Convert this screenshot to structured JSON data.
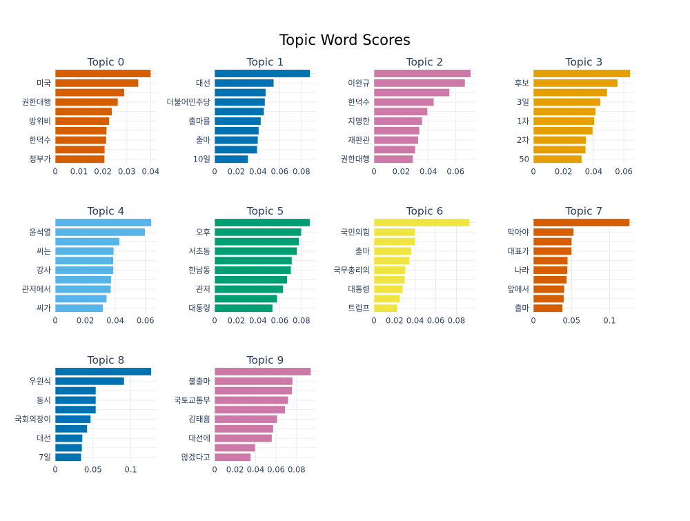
{
  "title": "Topic Word Scores",
  "colors": {
    "grid": "#e9ecf1",
    "axis_text": "#2a3f5f",
    "title_text": "#000000"
  },
  "chart_data": [
    {
      "type": "bar",
      "orientation": "horizontal",
      "title": "Topic 0",
      "color": "#D55E00",
      "categories_top_to_bottom": [
        "",
        "미국",
        "",
        "권한대행",
        "",
        "방위비",
        "",
        "한덕수",
        "",
        "정부가"
      ],
      "values_top_to_bottom": [
        0.0401,
        0.0349,
        0.029,
        0.0263,
        0.0238,
        0.0227,
        0.0216,
        0.0214,
        0.0208,
        0.0207
      ],
      "xlim": [
        0,
        0.0425
      ],
      "xticks": [
        {
          "value": 0,
          "label": "0"
        },
        {
          "value": 0.01,
          "label": "0.01"
        },
        {
          "value": 0.02,
          "label": "0.02"
        },
        {
          "value": 0.03,
          "label": "0.03"
        },
        {
          "value": 0.04,
          "label": "0.04"
        }
      ],
      "grid": true
    },
    {
      "type": "bar",
      "orientation": "horizontal",
      "title": "Topic 1",
      "color": "#0072B2",
      "categories_top_to_bottom": [
        "",
        "대선",
        "",
        "더불어민주당",
        "",
        "출마를",
        "",
        "출마",
        "",
        "10일"
      ],
      "values_top_to_bottom": [
        0.0881,
        0.0546,
        0.0472,
        0.0465,
        0.0456,
        0.0427,
        0.0408,
        0.04,
        0.0393,
        0.0309
      ],
      "xlim": [
        0,
        0.0935
      ],
      "xticks": [
        {
          "value": 0,
          "label": "0"
        },
        {
          "value": 0.02,
          "label": "0.02"
        },
        {
          "value": 0.04,
          "label": "0.04"
        },
        {
          "value": 0.06,
          "label": "0.06"
        },
        {
          "value": 0.08,
          "label": "0.08"
        }
      ],
      "grid": true
    },
    {
      "type": "bar",
      "orientation": "horizontal",
      "title": "Topic 2",
      "color": "#CC79A7",
      "categories_top_to_bottom": [
        "",
        "이완규",
        "",
        "한덕수",
        "",
        "지명한",
        "",
        "재판관",
        "",
        "권한대행"
      ],
      "values_top_to_bottom": [
        0.0712,
        0.067,
        0.0556,
        0.0441,
        0.0394,
        0.0355,
        0.0335,
        0.0326,
        0.0304,
        0.0287
      ],
      "xlim": [
        0,
        0.0746
      ],
      "xticks": [
        {
          "value": 0,
          "label": "0"
        },
        {
          "value": 0.02,
          "label": "0.02"
        },
        {
          "value": 0.04,
          "label": "0.04"
        },
        {
          "value": 0.06,
          "label": "0.06"
        }
      ],
      "grid": true
    },
    {
      "type": "bar",
      "orientation": "horizontal",
      "title": "Topic 3",
      "color": "#E69F00",
      "categories_top_to_bottom": [
        "",
        "후보",
        "",
        "3일",
        "",
        "1차",
        "",
        "2차",
        "",
        "50"
      ],
      "values_top_to_bottom": [
        0.0643,
        0.0559,
        0.049,
        0.0446,
        0.0413,
        0.0405,
        0.0394,
        0.035,
        0.0347,
        0.0321
      ],
      "xlim": [
        0,
        0.0673
      ],
      "xticks": [
        {
          "value": 0,
          "label": "0"
        },
        {
          "value": 0.02,
          "label": "0.02"
        },
        {
          "value": 0.04,
          "label": "0.04"
        },
        {
          "value": 0.06,
          "label": "0.06"
        }
      ],
      "grid": true
    },
    {
      "type": "bar",
      "orientation": "horizontal",
      "title": "Topic 4",
      "color": "#56B4E9",
      "categories_top_to_bottom": [
        "",
        "윤석열",
        "",
        "씨는",
        "",
        "강사",
        "",
        "관저에서",
        "",
        "씨가"
      ],
      "values_top_to_bottom": [
        0.064,
        0.0598,
        0.0428,
        0.039,
        0.0388,
        0.0388,
        0.0373,
        0.0371,
        0.0343,
        0.0318
      ],
      "xlim": [
        0,
        0.0675
      ],
      "xticks": [
        {
          "value": 0,
          "label": "0"
        },
        {
          "value": 0.02,
          "label": "0.02"
        },
        {
          "value": 0.04,
          "label": "0.04"
        },
        {
          "value": 0.06,
          "label": "0.06"
        }
      ],
      "grid": true
    },
    {
      "type": "bar",
      "orientation": "horizontal",
      "title": "Topic 5",
      "color": "#009E73",
      "categories_top_to_bottom": [
        "",
        "오후",
        "",
        "서초동",
        "",
        "한남동",
        "",
        "관저",
        "",
        "대통령"
      ],
      "values_top_to_bottom": [
        0.0879,
        0.08,
        0.0778,
        0.076,
        0.0713,
        0.0705,
        0.067,
        0.0633,
        0.0578,
        0.0535
      ],
      "xlim": [
        0,
        0.0935
      ],
      "xticks": [
        {
          "value": 0,
          "label": "0"
        },
        {
          "value": 0.02,
          "label": "0.02"
        },
        {
          "value": 0.04,
          "label": "0.04"
        },
        {
          "value": 0.06,
          "label": "0.06"
        },
        {
          "value": 0.08,
          "label": "0.08"
        }
      ],
      "grid": true
    },
    {
      "type": "bar",
      "orientation": "horizontal",
      "title": "Topic 6",
      "color": "#F0E442",
      "categories_top_to_bottom": [
        "",
        "국민의힘",
        "",
        "출마",
        "",
        "국무총리의",
        "",
        "대통령",
        "",
        "트럼프"
      ],
      "values_top_to_bottom": [
        0.093,
        0.04,
        0.04,
        0.0365,
        0.0345,
        0.0305,
        0.03,
        0.028,
        0.025,
        0.0225
      ],
      "xlim": [
        0,
        0.0985
      ],
      "xticks": [
        {
          "value": 0,
          "label": "0"
        },
        {
          "value": 0.02,
          "label": "0.02"
        },
        {
          "value": 0.04,
          "label": "0.04"
        },
        {
          "value": 0.06,
          "label": "0.06"
        },
        {
          "value": 0.08,
          "label": "0.08"
        }
      ],
      "grid": true
    },
    {
      "type": "bar",
      "orientation": "horizontal",
      "title": "Topic 7",
      "color": "#D55E00",
      "categories_top_to_bottom": [
        "",
        "막아야",
        "",
        "대표가",
        "",
        "나라",
        "",
        "앞에서",
        "",
        "출마"
      ],
      "values_top_to_bottom": [
        0.1264,
        0.0527,
        0.0504,
        0.0503,
        0.0451,
        0.0448,
        0.0437,
        0.0407,
        0.04,
        0.0384
      ],
      "xlim": [
        0,
        0.133
      ],
      "xticks": [
        {
          "value": 0,
          "label": "0"
        },
        {
          "value": 0.05,
          "label": "0.05"
        },
        {
          "value": 0.1,
          "label": "0.1"
        }
      ],
      "grid": true
    },
    {
      "type": "bar",
      "orientation": "horizontal",
      "title": "Topic 8",
      "color": "#0072B2",
      "categories_top_to_bottom": [
        "",
        "우원식",
        "",
        "동시",
        "",
        "국회의장이",
        "",
        "대선",
        "",
        "7일"
      ],
      "values_top_to_bottom": [
        0.127,
        0.0912,
        0.0538,
        0.0538,
        0.0538,
        0.047,
        0.0424,
        0.0361,
        0.0355,
        0.0344
      ],
      "xlim": [
        0,
        0.134
      ],
      "xticks": [
        {
          "value": 0,
          "label": "0"
        },
        {
          "value": 0.05,
          "label": "0.05"
        },
        {
          "value": 0.1,
          "label": "0.1"
        }
      ],
      "grid": true
    },
    {
      "type": "bar",
      "orientation": "horizontal",
      "title": "Topic 9",
      "color": "#CC79A7",
      "categories_top_to_bottom": [
        "",
        "불출마",
        "",
        "국토교통부",
        "",
        "김태흠",
        "",
        "대선에",
        "",
        "않겠다고"
      ],
      "values_top_to_bottom": [
        0.094,
        0.0762,
        0.0757,
        0.0718,
        0.0689,
        0.0612,
        0.0573,
        0.056,
        0.0397,
        0.0353
      ],
      "xlim": [
        0,
        0.099
      ],
      "xticks": [
        {
          "value": 0,
          "label": "0"
        },
        {
          "value": 0.02,
          "label": "0.02"
        },
        {
          "value": 0.04,
          "label": "0.04"
        },
        {
          "value": 0.06,
          "label": "0.06"
        },
        {
          "value": 0.08,
          "label": "0.08"
        }
      ],
      "grid": true
    }
  ]
}
